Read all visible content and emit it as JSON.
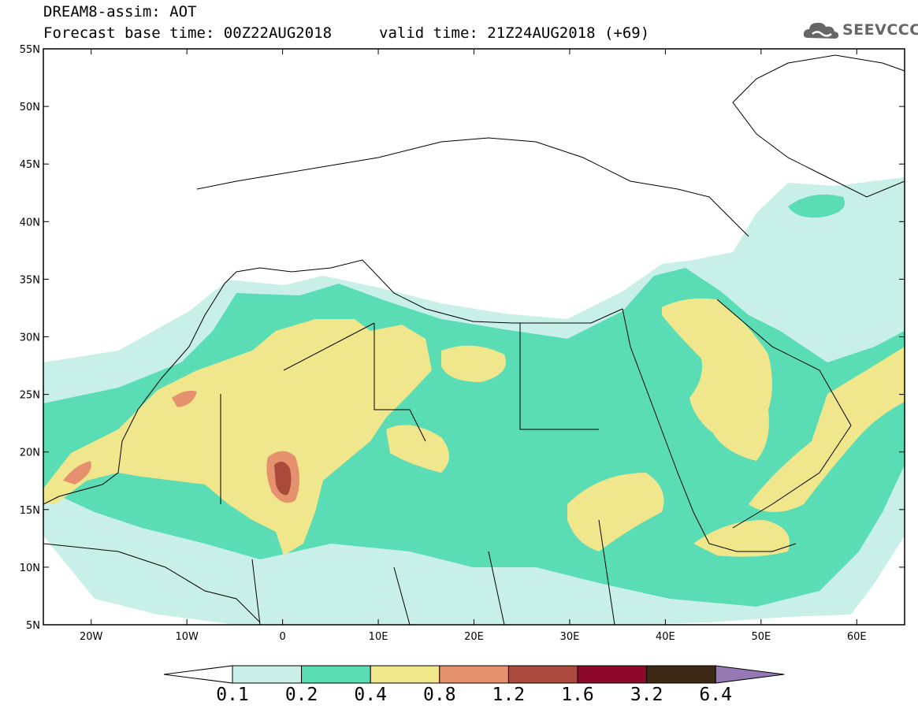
{
  "header": {
    "line1": "DREAM8-assim: AOT",
    "base_time": "Forecast base time: 00Z22AUG2018",
    "valid_time": "valid time: 21Z24AUG2018 (+69)"
  },
  "logo": {
    "text": "SEEVCCC",
    "icon": "cloud-icon"
  },
  "map": {
    "lon_range": [
      -25,
      65
    ],
    "lat_range": [
      5,
      55
    ],
    "x_ticks": [
      "20W",
      "10W",
      "0",
      "10E",
      "20E",
      "30E",
      "40E",
      "50E",
      "60E"
    ],
    "y_ticks": [
      "55N",
      "50N",
      "45N",
      "40N",
      "35N",
      "30N",
      "25N",
      "20N",
      "15N",
      "10N",
      "5N"
    ]
  },
  "colorbar": {
    "labels": [
      "0.1",
      "0.2",
      "0.4",
      "0.8",
      "1.2",
      "1.6",
      "3.2",
      "6.4"
    ],
    "colors": [
      "#ffffff",
      "#c8f0e8",
      "#5adcb4",
      "#f0e68c",
      "#e6916e",
      "#aa4a3c",
      "#8c0a28",
      "#3c2814",
      "#9678b4"
    ]
  }
}
